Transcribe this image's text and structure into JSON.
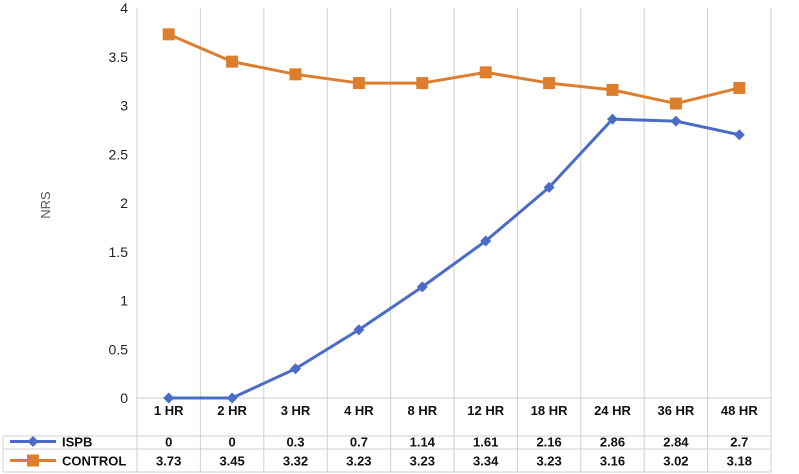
{
  "chart_data": {
    "type": "line",
    "categories": [
      "1 HR",
      "2 HR",
      "3 HR",
      "4 HR",
      "8 HR",
      "12 HR",
      "18 HR",
      "24 HR",
      "36 HR",
      "48 HR"
    ],
    "series": [
      {
        "name": "ISPB",
        "values": [
          0,
          0,
          0.3,
          0.7,
          1.14,
          1.61,
          2.16,
          2.86,
          2.84,
          2.7
        ],
        "value_labels": [
          "0",
          "0",
          "0.3",
          "0.7",
          "1.14",
          "1.61",
          "2.16",
          "2.86",
          "2.84",
          "2.7"
        ],
        "color": "#4a6cc7",
        "marker": "diamond"
      },
      {
        "name": "CONTROL",
        "values": [
          3.73,
          3.45,
          3.32,
          3.23,
          3.23,
          3.34,
          3.23,
          3.16,
          3.02,
          3.18
        ],
        "value_labels": [
          "3.73",
          "3.45",
          "3.32",
          "3.23",
          "3.23",
          "3.34",
          "3.23",
          "3.16",
          "3.02",
          "3.18"
        ],
        "color": "#dd7d2e",
        "marker": "square"
      }
    ],
    "ylabel": "NRS",
    "ylim": [
      0,
      4
    ],
    "yticks": [
      "0",
      "0.5",
      "1",
      "1.5",
      "2",
      "2.5",
      "3",
      "3.5",
      "4"
    ],
    "grid": "vertical",
    "legend": "data-table"
  }
}
